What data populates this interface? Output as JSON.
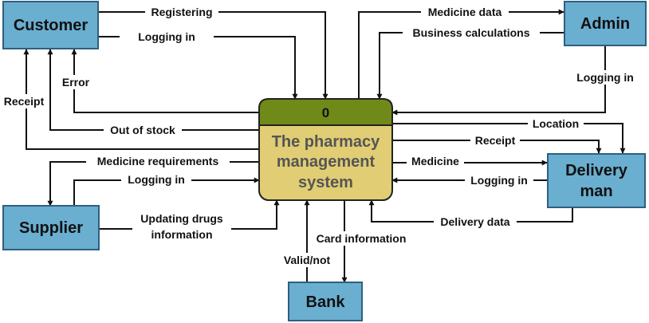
{
  "colors": {
    "entity_fill": "#6aaed0",
    "entity_stroke": "#2f5f7f",
    "process_fill": "#e0cd74",
    "process_header": "#6f8a18",
    "process_stroke": "#222222",
    "line": "#111111"
  },
  "process": {
    "id": "0",
    "lines": [
      "The pharmacy",
      "management",
      "system"
    ]
  },
  "entities": {
    "customer": "Customer",
    "admin": "Admin",
    "supplier": "Supplier",
    "bank": "Bank",
    "delivery_lines": [
      "Delivery",
      "man"
    ]
  },
  "flows": {
    "registering": "Registering",
    "customer_login": "Logging in",
    "error": "Error",
    "receipt_customer": "Receipt",
    "out_of_stock": "Out of stock",
    "medicine_data": "Medicine data",
    "business_calculations": "Business calculations",
    "admin_login": "Logging in",
    "location": "Location",
    "receipt_delivery": "Receipt",
    "medicine": "Medicine",
    "delivery_login": "Logging in",
    "delivery_data": "Delivery data",
    "medicine_requirements": "Medicine requirements",
    "supplier_login": "Logging in",
    "updating_drugs": [
      "Updating drugs",
      "information"
    ],
    "card_information": "Card information",
    "valid_not": "Valid/not"
  }
}
